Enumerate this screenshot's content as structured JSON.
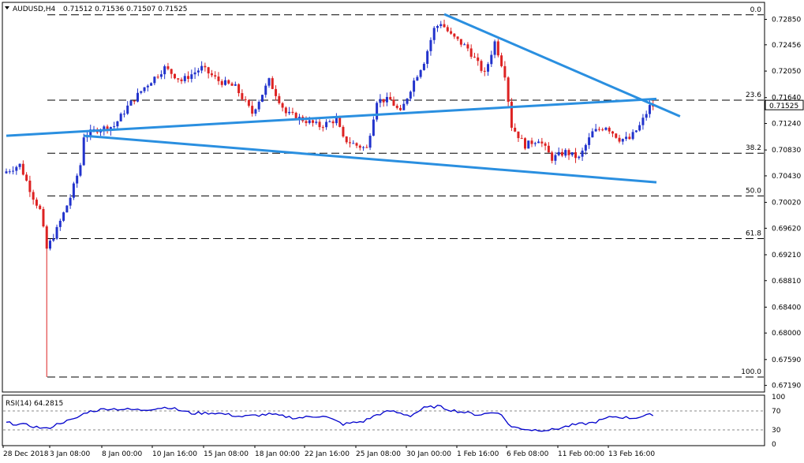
{
  "header": {
    "symbol_label": "AUDUSD,H4",
    "ohlc_text": "0.71512 0.71536 0.71507 0.71525"
  },
  "rsi_header": "RSI(14) 64.2815",
  "colors": {
    "bull": "#2233cc",
    "bear": "#dd2222",
    "trendline": "#2a8fe0",
    "rsi": "#0000cc",
    "price_tag_bg": "#ffffff"
  },
  "chart_data": [
    {
      "type": "candlestick",
      "title": "AUDUSD,H4",
      "y_ticks": [
        "0.72850",
        "0.72456",
        "0.72050",
        "0.71640",
        "0.71240",
        "0.70830",
        "0.70430",
        "0.70020",
        "0.69620",
        "0.69210",
        "0.68810",
        "0.68400",
        "0.68000",
        "0.67590",
        "0.67190"
      ],
      "ylim": [
        0.671,
        0.731
      ],
      "x_tick_labels": [
        "28 Dec 2018",
        "3 Jan 08:00",
        "8 Jan 00:00",
        "10 Jan 16:00",
        "15 Jan 08:00",
        "18 Jan 00:00",
        "22 Jan 16:00",
        "25 Jan 08:00",
        "30 Jan 00:00",
        "1 Feb 16:00",
        "6 Feb 08:00",
        "11 Feb 00:00",
        "13 Feb 16:00"
      ],
      "current_price": "0.71525",
      "fibonacci": [
        {
          "label": "0.0",
          "value": 0.7292
        },
        {
          "label": "23.6",
          "value": 0.716
        },
        {
          "label": "38.2",
          "value": 0.7078
        },
        {
          "label": "50.0",
          "value": 0.7012
        },
        {
          "label": "61.8",
          "value": 0.6946
        },
        {
          "label": "100.0",
          "value": 0.6732
        }
      ],
      "trendlines": [
        {
          "from": [
            0,
            0.7105
          ],
          "to": [
            193,
            0.7162
          ]
        },
        {
          "from": [
            23,
            0.7105
          ],
          "to": [
            193,
            0.7033
          ]
        },
        {
          "from": [
            130,
            0.7293
          ],
          "to": [
            200,
            0.7135
          ]
        }
      ],
      "grid": false,
      "bar_count": 193,
      "anchors": [
        [
          0,
          0.705
        ],
        [
          4,
          0.706
        ],
        [
          8,
          0.701
        ],
        [
          10,
          0.699
        ],
        [
          12,
          0.693
        ],
        [
          15,
          0.696
        ],
        [
          19,
          0.701
        ],
        [
          22,
          0.706
        ],
        [
          23,
          0.7105
        ],
        [
          27,
          0.7115
        ],
        [
          32,
          0.712
        ],
        [
          36,
          0.715
        ],
        [
          41,
          0.718
        ],
        [
          47,
          0.721
        ],
        [
          52,
          0.719
        ],
        [
          58,
          0.721
        ],
        [
          63,
          0.719
        ],
        [
          68,
          0.718
        ],
        [
          73,
          0.714
        ],
        [
          78,
          0.719
        ],
        [
          83,
          0.714
        ],
        [
          88,
          0.713
        ],
        [
          93,
          0.712
        ],
        [
          98,
          0.713
        ],
        [
          100,
          0.71
        ],
        [
          104,
          0.709
        ],
        [
          107,
          0.7085
        ],
        [
          110,
          0.716
        ],
        [
          114,
          0.716
        ],
        [
          117,
          0.714
        ],
        [
          121,
          0.719
        ],
        [
          124,
          0.722
        ],
        [
          127,
          0.727
        ],
        [
          129,
          0.728
        ],
        [
          132,
          0.726
        ],
        [
          137,
          0.724
        ],
        [
          142,
          0.72
        ],
        [
          145,
          0.725
        ],
        [
          148,
          0.72
        ],
        [
          150,
          0.712
        ],
        [
          154,
          0.709
        ],
        [
          158,
          0.71
        ],
        [
          162,
          0.707
        ],
        [
          166,
          0.708
        ],
        [
          170,
          0.707
        ],
        [
          174,
          0.711
        ],
        [
          178,
          0.712
        ],
        [
          182,
          0.71
        ],
        [
          185,
          0.71
        ],
        [
          188,
          0.712
        ],
        [
          191,
          0.715
        ],
        [
          193,
          0.71525
        ]
      ]
    },
    {
      "type": "line",
      "title": "RSI(14) 64.2815",
      "y_ticks": [
        "100",
        "70",
        "30",
        "0"
      ],
      "ylim": [
        0,
        100
      ],
      "levels": [
        70,
        30
      ],
      "anchors": [
        [
          0,
          45
        ],
        [
          6,
          40
        ],
        [
          12,
          32
        ],
        [
          16,
          45
        ],
        [
          20,
          52
        ],
        [
          24,
          68
        ],
        [
          30,
          75
        ],
        [
          40,
          72
        ],
        [
          48,
          78
        ],
        [
          55,
          65
        ],
        [
          62,
          66
        ],
        [
          70,
          58
        ],
        [
          78,
          63
        ],
        [
          86,
          55
        ],
        [
          94,
          60
        ],
        [
          100,
          42
        ],
        [
          106,
          48
        ],
        [
          110,
          62
        ],
        [
          114,
          70
        ],
        [
          120,
          60
        ],
        [
          124,
          76
        ],
        [
          128,
          80
        ],
        [
          132,
          72
        ],
        [
          140,
          62
        ],
        [
          146,
          68
        ],
        [
          150,
          36
        ],
        [
          156,
          30
        ],
        [
          162,
          30
        ],
        [
          168,
          40
        ],
        [
          174,
          45
        ],
        [
          180,
          58
        ],
        [
          186,
          55
        ],
        [
          190,
          60
        ],
        [
          193,
          64.28
        ]
      ]
    }
  ]
}
